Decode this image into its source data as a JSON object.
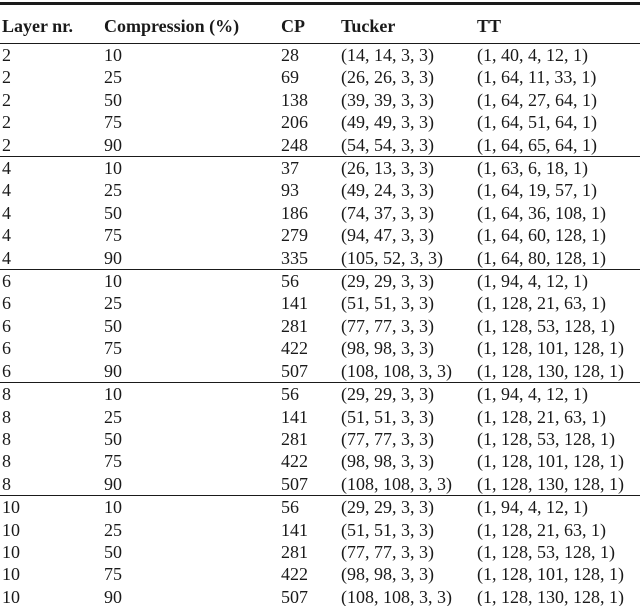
{
  "page": {
    "background": "#ffffff",
    "text_color": "#1a1a1a",
    "rule_color": "#1a1a1a"
  },
  "table": {
    "columns": [
      "Layer nr.",
      "Compression (%)",
      "CP",
      "Tucker",
      "TT"
    ],
    "sections": [
      {
        "layer": "2",
        "rows": [
          [
            "2",
            "10",
            "28",
            "(14, 14, 3, 3)",
            "(1, 40, 4, 12, 1)"
          ],
          [
            "2",
            "25",
            "69",
            "(26, 26, 3, 3)",
            "(1, 64, 11, 33, 1)"
          ],
          [
            "2",
            "50",
            "138",
            "(39, 39, 3, 3)",
            "(1, 64, 27, 64, 1)"
          ],
          [
            "2",
            "75",
            "206",
            "(49, 49, 3, 3)",
            "(1, 64, 51, 64, 1)"
          ],
          [
            "2",
            "90",
            "248",
            "(54, 54, 3, 3)",
            "(1, 64, 65, 64, 1)"
          ]
        ]
      },
      {
        "layer": "4",
        "rows": [
          [
            "4",
            "10",
            "37",
            "(26, 13, 3, 3)",
            "(1, 63, 6, 18, 1)"
          ],
          [
            "4",
            "25",
            "93",
            "(49, 24, 3, 3)",
            "(1, 64, 19, 57, 1)"
          ],
          [
            "4",
            "50",
            "186",
            "(74, 37, 3, 3)",
            "(1, 64, 36, 108, 1)"
          ],
          [
            "4",
            "75",
            "279",
            "(94, 47, 3, 3)",
            "(1, 64, 60, 128, 1)"
          ],
          [
            "4",
            "90",
            "335",
            "(105, 52, 3, 3)",
            "(1, 64, 80, 128, 1)"
          ]
        ]
      },
      {
        "layer": "6",
        "rows": [
          [
            "6",
            "10",
            "56",
            "(29, 29, 3, 3)",
            "(1, 94, 4, 12, 1)"
          ],
          [
            "6",
            "25",
            "141",
            "(51, 51, 3, 3)",
            "(1, 128, 21, 63, 1)"
          ],
          [
            "6",
            "50",
            "281",
            "(77, 77, 3, 3)",
            "(1, 128, 53, 128, 1)"
          ],
          [
            "6",
            "75",
            "422",
            "(98, 98, 3, 3)",
            "(1, 128, 101, 128, 1)"
          ],
          [
            "6",
            "90",
            "507",
            "(108, 108, 3, 3)",
            "(1, 128, 130, 128, 1)"
          ]
        ]
      },
      {
        "layer": "8",
        "rows": [
          [
            "8",
            "10",
            "56",
            "(29, 29, 3, 3)",
            "(1, 94, 4, 12, 1)"
          ],
          [
            "8",
            "25",
            "141",
            "(51, 51, 3, 3)",
            "(1, 128, 21, 63, 1)"
          ],
          [
            "8",
            "50",
            "281",
            "(77, 77, 3, 3)",
            "(1, 128, 53, 128, 1)"
          ],
          [
            "8",
            "75",
            "422",
            "(98, 98, 3, 3)",
            "(1, 128, 101, 128, 1)"
          ],
          [
            "8",
            "90",
            "507",
            "(108, 108, 3, 3)",
            "(1, 128, 130, 128, 1)"
          ]
        ]
      },
      {
        "layer": "10",
        "rows": [
          [
            "10",
            "10",
            "56",
            "(29, 29, 3, 3)",
            "(1, 94, 4, 12, 1)"
          ],
          [
            "10",
            "25",
            "141",
            "(51, 51, 3, 3)",
            "(1, 128, 21, 63, 1)"
          ],
          [
            "10",
            "50",
            "281",
            "(77, 77, 3, 3)",
            "(1, 128, 53, 128, 1)"
          ],
          [
            "10",
            "75",
            "422",
            "(98, 98, 3, 3)",
            "(1, 128, 101, 128, 1)"
          ],
          [
            "10",
            "90",
            "507",
            "(108, 108, 3, 3)",
            "(1, 128, 130, 128, 1)"
          ]
        ]
      }
    ]
  }
}
